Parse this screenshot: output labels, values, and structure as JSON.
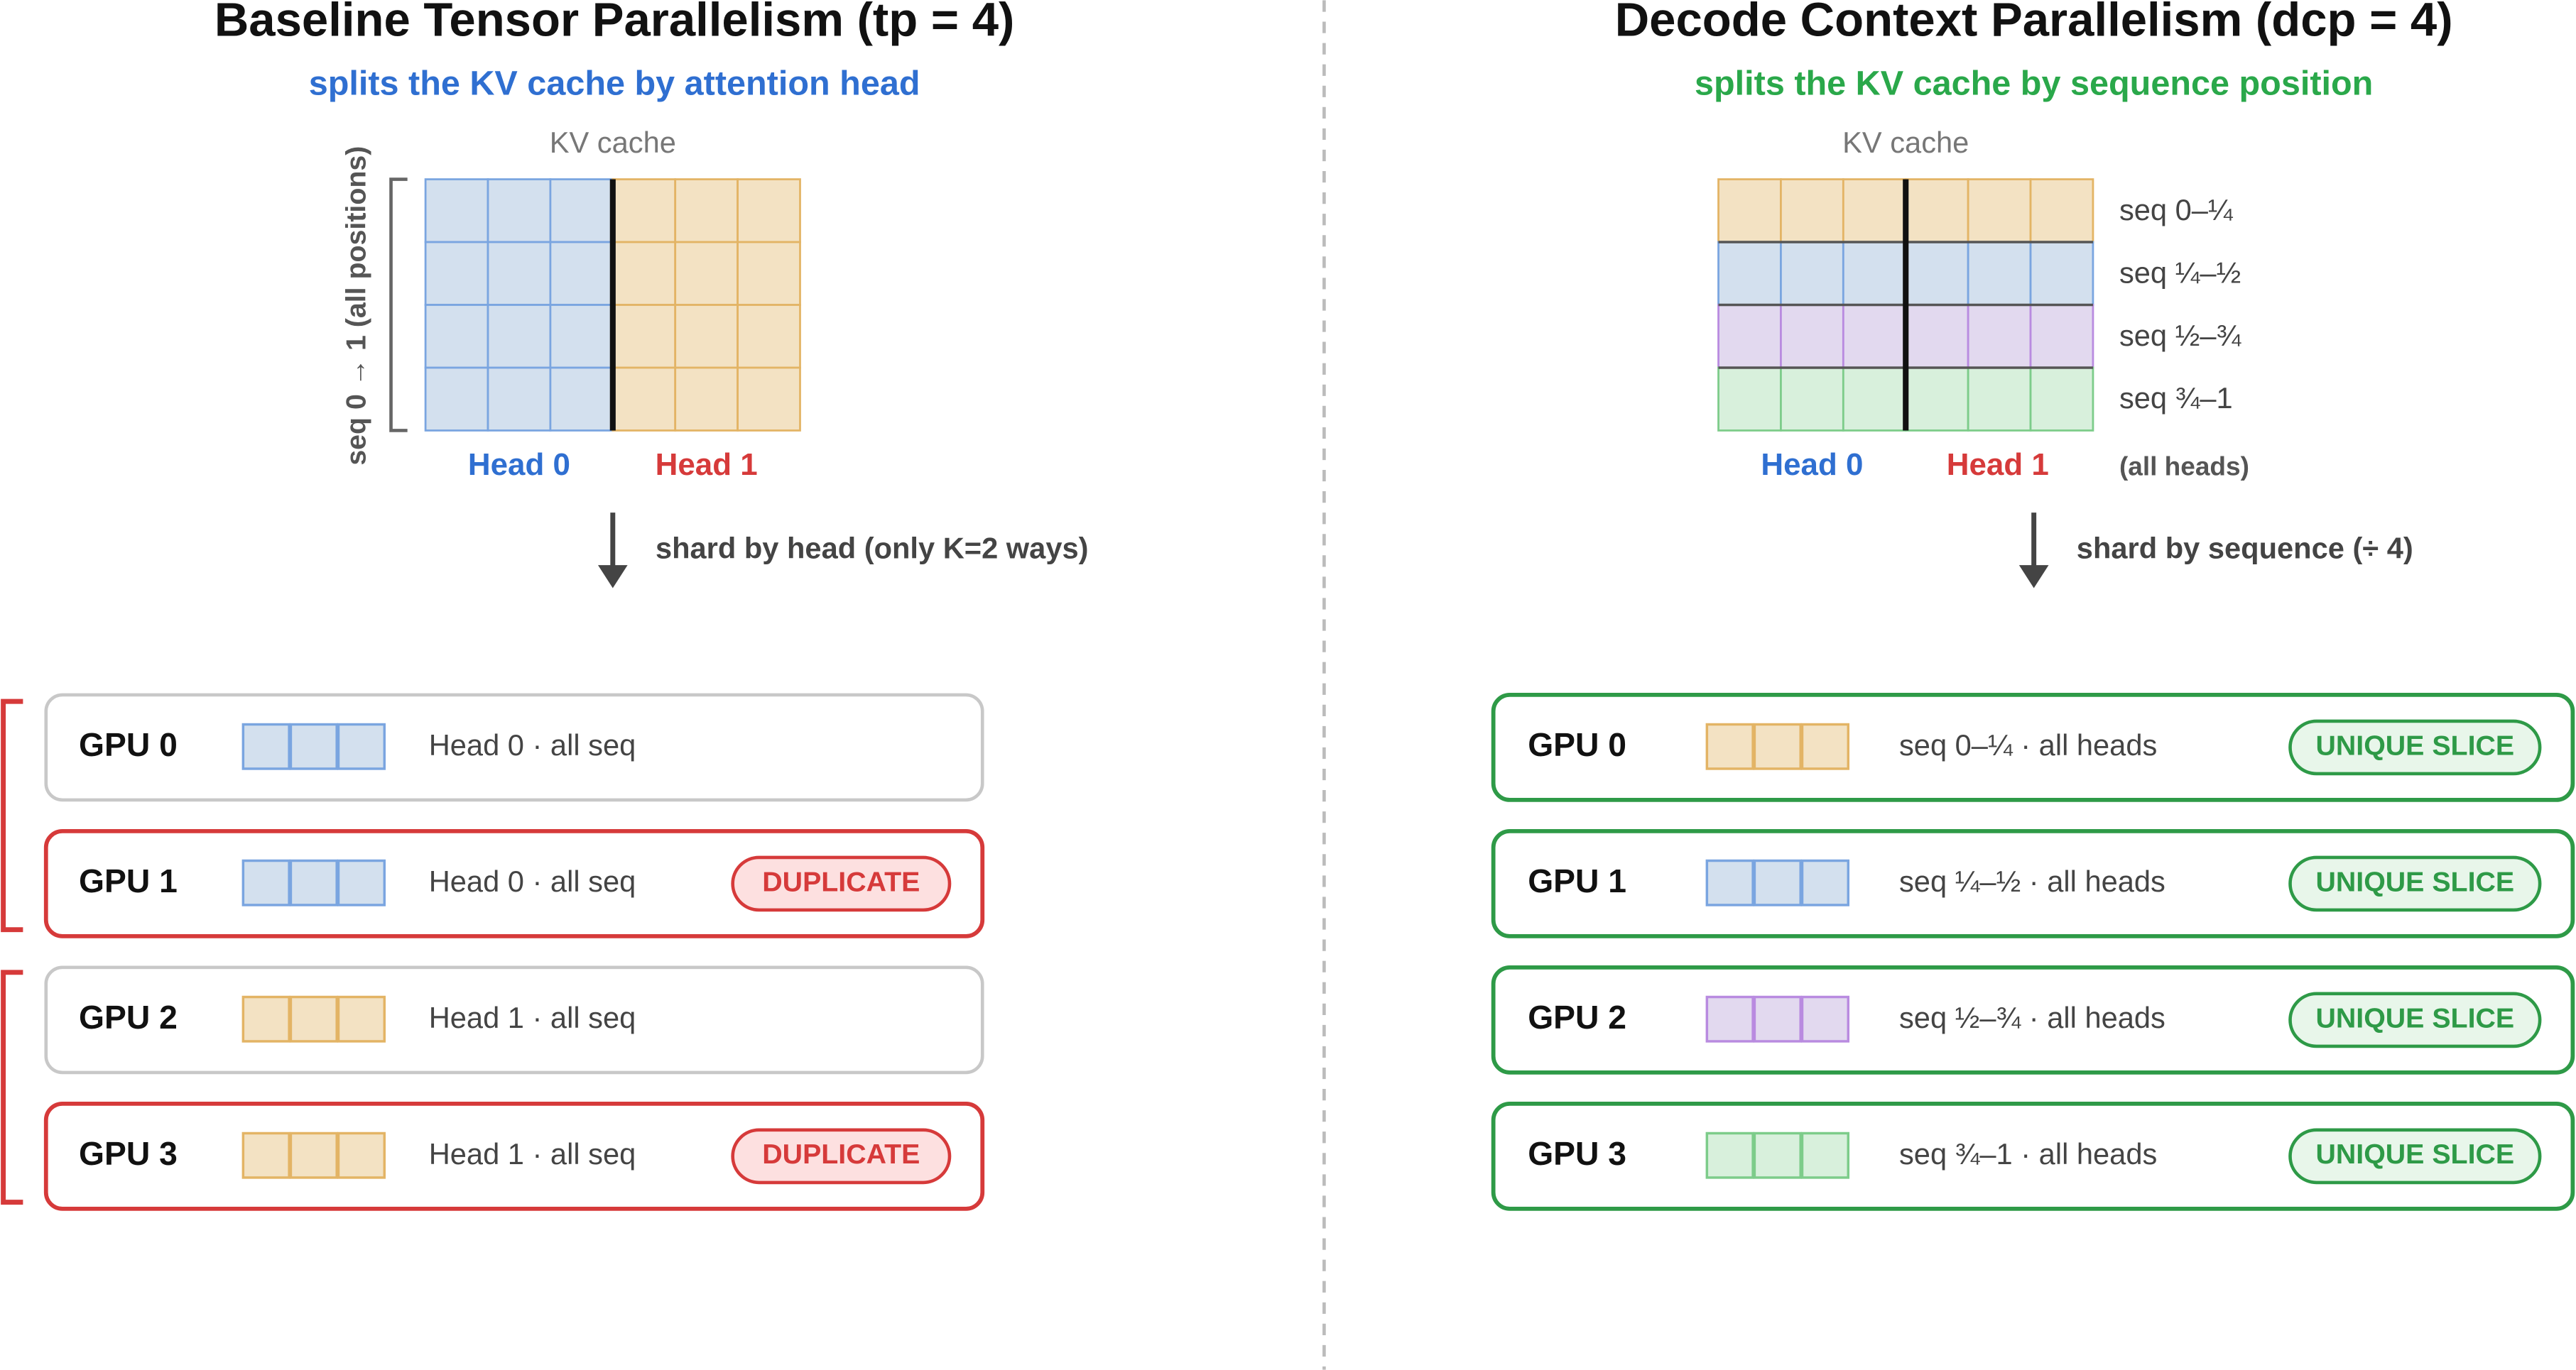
{
  "left": {
    "title": "Baseline Tensor Parallelism (tp = 4)",
    "subtitle": "splits the KV cache by attention head",
    "cache_label": "KV cache",
    "axis_label": "seq 0 → 1 (all positions)",
    "heads": [
      "Head 0",
      "Head 1"
    ],
    "arrow_label": "shard by head (only K=2 ways)",
    "gpus": [
      {
        "name": "GPU 0",
        "desc": "Head 0 · all seq"
      },
      {
        "name": "GPU 1",
        "desc": "Head 0 · all seq",
        "badge": "DUPLICATE"
      },
      {
        "name": "GPU 2",
        "desc": "Head 1 · all seq"
      },
      {
        "name": "GPU 3",
        "desc": "Head 1 · all seq",
        "badge": "DUPLICATE"
      }
    ]
  },
  "right": {
    "title": "Decode Context Parallelism (dcp = 4)",
    "subtitle": "splits the KV cache by sequence position",
    "cache_label": "KV cache",
    "rows": [
      "seq 0–¼",
      "seq ¼–½",
      "seq ½–¾",
      "seq ¾–1"
    ],
    "heads": [
      "Head 0",
      "Head 1"
    ],
    "heads_note": "(all heads)",
    "arrow_label": "shard by sequence (÷ 4)",
    "gpus": [
      {
        "name": "GPU 0",
        "desc": "seq 0–¼ · all heads",
        "badge": "UNIQUE SLICE"
      },
      {
        "name": "GPU 1",
        "desc": "seq ¼–½ · all heads",
        "badge": "UNIQUE SLICE"
      },
      {
        "name": "GPU 2",
        "desc": "seq ½–¾ · all heads",
        "badge": "UNIQUE SLICE"
      },
      {
        "name": "GPU 3",
        "desc": "seq ¾–1 · all heads",
        "badge": "UNIQUE SLICE"
      }
    ]
  }
}
